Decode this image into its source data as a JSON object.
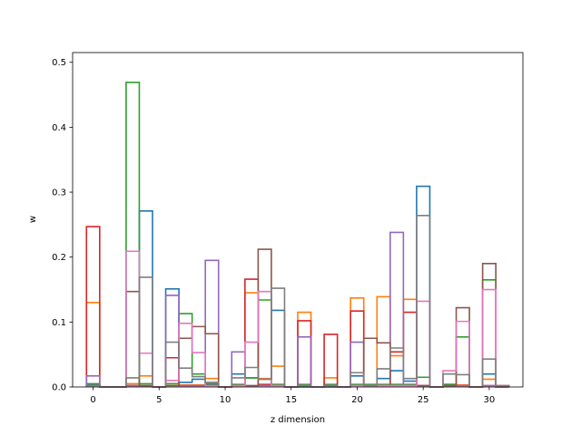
{
  "chart_data": {
    "type": "bar",
    "style": "step-outline histogram (unfilled bars)",
    "xlabel": "z dimension",
    "ylabel": "w",
    "xlim": [
      -1.55,
      32.55
    ],
    "ylim": [
      0,
      0.515
    ],
    "grid": false,
    "x_ticks": [
      {
        "v": 0,
        "label": "0"
      },
      {
        "v": 5,
        "label": "5"
      },
      {
        "v": 10,
        "label": "10"
      },
      {
        "v": 15,
        "label": "15"
      },
      {
        "v": 20,
        "label": "20"
      },
      {
        "v": 25,
        "label": "25"
      },
      {
        "v": 30,
        "label": "30"
      }
    ],
    "y_ticks": [
      {
        "v": 0.0,
        "label": "0.0"
      },
      {
        "v": 0.1,
        "label": "0.1"
      },
      {
        "v": 0.2,
        "label": "0.2"
      },
      {
        "v": 0.3,
        "label": "0.3"
      },
      {
        "v": 0.4,
        "label": "0.4"
      },
      {
        "v": 0.5,
        "label": "0.5"
      }
    ],
    "bins": [
      0,
      1,
      2,
      3,
      4,
      5,
      6,
      7,
      8,
      9,
      10,
      11,
      12,
      13,
      14,
      15,
      16,
      17,
      18,
      19,
      20,
      21,
      22,
      23,
      24,
      25,
      26,
      27,
      28,
      29,
      30,
      31
    ],
    "series": [
      {
        "color": "#1f77b4",
        "values": [
          0.004,
          0,
          0,
          0.002,
          0.271,
          0,
          0.151,
          0.007,
          0.012,
          0.003,
          0,
          0.02,
          0.014,
          0.012,
          0.118,
          0,
          0,
          0,
          0,
          0,
          0.017,
          0.003,
          0.013,
          0.025,
          0.009,
          0.309,
          0,
          0.004,
          0.003,
          0,
          0.02,
          0
        ]
      },
      {
        "color": "#ff7f0e",
        "values": [
          0.13,
          0,
          0,
          0.005,
          0.017,
          0,
          0.005,
          0.003,
          0.003,
          0.013,
          0,
          0.002,
          0.145,
          0.013,
          0.032,
          0,
          0.115,
          0,
          0.014,
          0,
          0.137,
          0.003,
          0.139,
          0.048,
          0.135,
          0.015,
          0,
          0.003,
          0.003,
          0,
          0.012,
          0
        ]
      },
      {
        "color": "#2ca02c",
        "values": [
          0.005,
          0,
          0,
          0.469,
          0.005,
          0,
          0.005,
          0.113,
          0.02,
          0.005,
          0,
          0.004,
          0.014,
          0.134,
          0.004,
          0,
          0.004,
          0,
          0.004,
          0,
          0.004,
          0.004,
          0.004,
          0.004,
          0.004,
          0.015,
          0,
          0.004,
          0.077,
          0,
          0.165,
          0
        ]
      },
      {
        "color": "#d62728",
        "values": [
          0.247,
          0,
          0,
          0.002,
          0.002,
          0,
          0.045,
          0.002,
          0.002,
          0.002,
          0,
          0.002,
          0.166,
          0.004,
          0.002,
          0,
          0.102,
          0,
          0.081,
          0,
          0.117,
          0.002,
          0.002,
          0.054,
          0.115,
          0.002,
          0,
          0.002,
          0.002,
          0,
          0.002,
          0.002
        ]
      },
      {
        "color": "#9467bd",
        "values": [
          0.017,
          0,
          0,
          0.002,
          0.002,
          0,
          0.141,
          0.002,
          0.002,
          0.195,
          0,
          0.054,
          0.002,
          0.002,
          0.002,
          0,
          0.077,
          0,
          0.002,
          0,
          0.069,
          0.002,
          0.002,
          0.238,
          0.002,
          0.002,
          0,
          0.002,
          0.002,
          0,
          0.002,
          0
        ]
      },
      {
        "color": "#8c564b",
        "values": [
          0.002,
          0,
          0,
          0.147,
          0.002,
          0,
          0.002,
          0.075,
          0.093,
          0.082,
          0,
          0.002,
          0.002,
          0.212,
          0.002,
          0,
          0.002,
          0,
          0.002,
          0,
          0.002,
          0.075,
          0.068,
          0.002,
          0.002,
          0.002,
          0,
          0.002,
          0.122,
          0,
          0.19,
          0
        ]
      },
      {
        "color": "#e377c2",
        "values": [
          0.002,
          0,
          0,
          0.209,
          0.052,
          0,
          0.01,
          0.098,
          0.053,
          0.002,
          0,
          0.002,
          0.069,
          0.147,
          0.002,
          0,
          0.002,
          0,
          0.002,
          0,
          0.002,
          0.002,
          0.002,
          0.002,
          0.002,
          0.132,
          0,
          0.025,
          0.101,
          0,
          0.15,
          0
        ]
      },
      {
        "color": "#7f7f7f",
        "values": [
          0.002,
          0,
          0,
          0.014,
          0.169,
          0,
          0.069,
          0.029,
          0.016,
          0.007,
          0,
          0.014,
          0.03,
          0.012,
          0.152,
          0,
          0.002,
          0,
          0.002,
          0,
          0.022,
          0.002,
          0.028,
          0.06,
          0.013,
          0.264,
          0,
          0.02,
          0.019,
          0,
          0.043,
          0.002
        ]
      }
    ]
  }
}
